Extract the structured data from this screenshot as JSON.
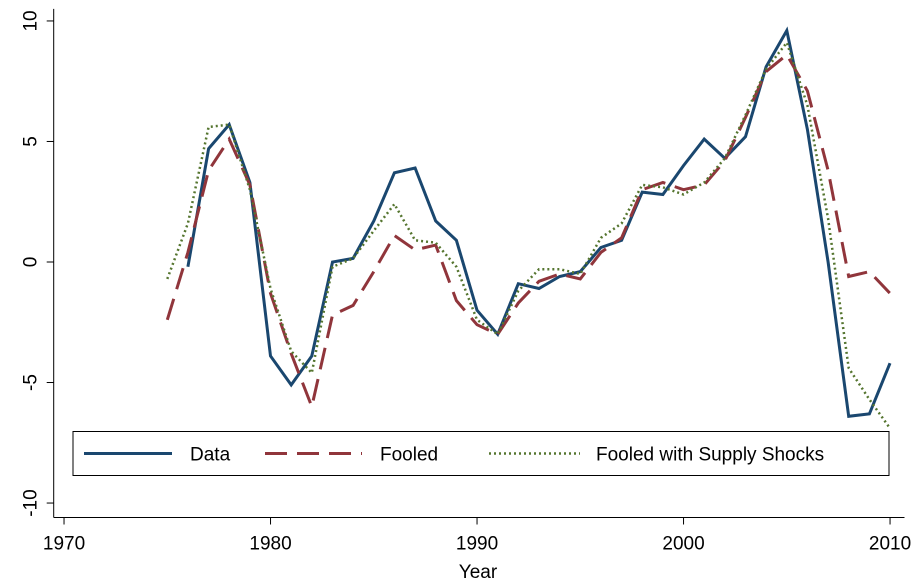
{
  "chart_data": {
    "type": "line",
    "x_label": "Year",
    "x": [
      1975,
      1976,
      1977,
      1978,
      1979,
      1980,
      1981,
      1982,
      1983,
      1984,
      1985,
      1986,
      1987,
      1988,
      1989,
      1990,
      1991,
      1992,
      1993,
      1994,
      1995,
      1996,
      1997,
      1998,
      1999,
      2000,
      2001,
      2002,
      2003,
      2004,
      2005,
      2006,
      2007,
      2008,
      2009,
      2010
    ],
    "series": [
      {
        "name": "Data",
        "color": "#1a476f",
        "dash": "solid",
        "values": [
          null,
          -0.2,
          4.7,
          5.7,
          3.3,
          -3.9,
          -5.1,
          -3.9,
          0.0,
          0.15,
          1.7,
          3.7,
          3.9,
          1.7,
          0.9,
          -2.0,
          -3.0,
          -0.9,
          -1.1,
          -0.6,
          -0.4,
          0.6,
          0.9,
          2.9,
          2.8,
          4.0,
          5.1,
          4.3,
          5.2,
          8.1,
          9.6,
          5.5,
          0.0,
          -6.4,
          -6.3,
          -4.2
        ]
      },
      {
        "name": "Fooled",
        "color": "#90353b",
        "dash": "dashed",
        "values": [
          -2.4,
          0.4,
          3.8,
          5.1,
          3.2,
          -1.3,
          -3.8,
          -6.0,
          -2.2,
          -1.8,
          -0.4,
          1.1,
          0.5,
          0.7,
          -1.6,
          -2.6,
          -3.0,
          -1.7,
          -0.8,
          -0.5,
          -0.7,
          0.4,
          1.0,
          3.0,
          3.3,
          3.0,
          3.2,
          4.2,
          6.0,
          7.9,
          8.6,
          7.1,
          3.8,
          -0.6,
          -0.4,
          -1.3
        ]
      },
      {
        "name": "Fooled with Supply Shocks",
        "color": "#55752f",
        "dash": "dotted",
        "values": [
          -0.7,
          1.6,
          5.6,
          5.7,
          3.0,
          -1.1,
          -3.7,
          -4.6,
          -0.2,
          0.15,
          1.3,
          2.4,
          0.9,
          0.8,
          -0.2,
          -2.4,
          -3.0,
          -1.2,
          -0.3,
          -0.3,
          -0.5,
          1.0,
          1.6,
          3.2,
          3.1,
          2.8,
          3.3,
          4.3,
          6.1,
          8.0,
          9.1,
          6.5,
          1.8,
          -4.4,
          -5.7,
          -6.9
        ]
      }
    ],
    "xlim": [
      1969.5,
      2010.7
    ],
    "xticks": [
      1970,
      1980,
      1990,
      2000,
      2010
    ],
    "ylim": [
      -10.6,
      10.5
    ],
    "yticks": [
      10,
      5,
      0,
      -5,
      -10
    ],
    "grid": false,
    "legend": "bottom"
  }
}
